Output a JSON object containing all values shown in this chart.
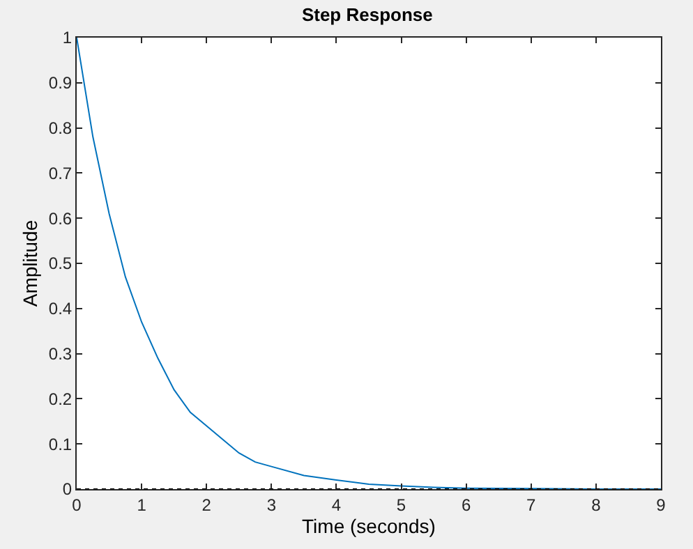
{
  "chart_data": {
    "type": "line",
    "title": "Step Response",
    "xlabel": "Time (seconds)",
    "ylabel": "Amplitude",
    "x": [
      0,
      0.25,
      0.5,
      0.75,
      1,
      1.25,
      1.5,
      1.75,
      2,
      2.25,
      2.5,
      2.75,
      3,
      3.5,
      4,
      4.5,
      5,
      5.5,
      6,
      7,
      8,
      9
    ],
    "series": [
      {
        "color": "#0072bd",
        "values": [
          1,
          0.78,
          0.61,
          0.47,
          0.37,
          0.29,
          0.22,
          0.17,
          0.14,
          0.11,
          0.08,
          0.06,
          0.05,
          0.03,
          0.02,
          0.011,
          0.007,
          0.004,
          0.002,
          0.001,
          0,
          0
        ]
      }
    ],
    "ref_lines": [
      {
        "axis": "y",
        "value": 0,
        "line_style": "dotted",
        "color": "#000000"
      }
    ],
    "xlim": [
      0,
      9
    ],
    "ylim": [
      0,
      1
    ],
    "xticks": [
      0,
      1,
      2,
      3,
      4,
      5,
      6,
      7,
      8,
      9
    ],
    "yticks": [
      0,
      0.1,
      0.2,
      0.3,
      0.4,
      0.5,
      0.6,
      0.7,
      0.8,
      0.9,
      1
    ]
  }
}
